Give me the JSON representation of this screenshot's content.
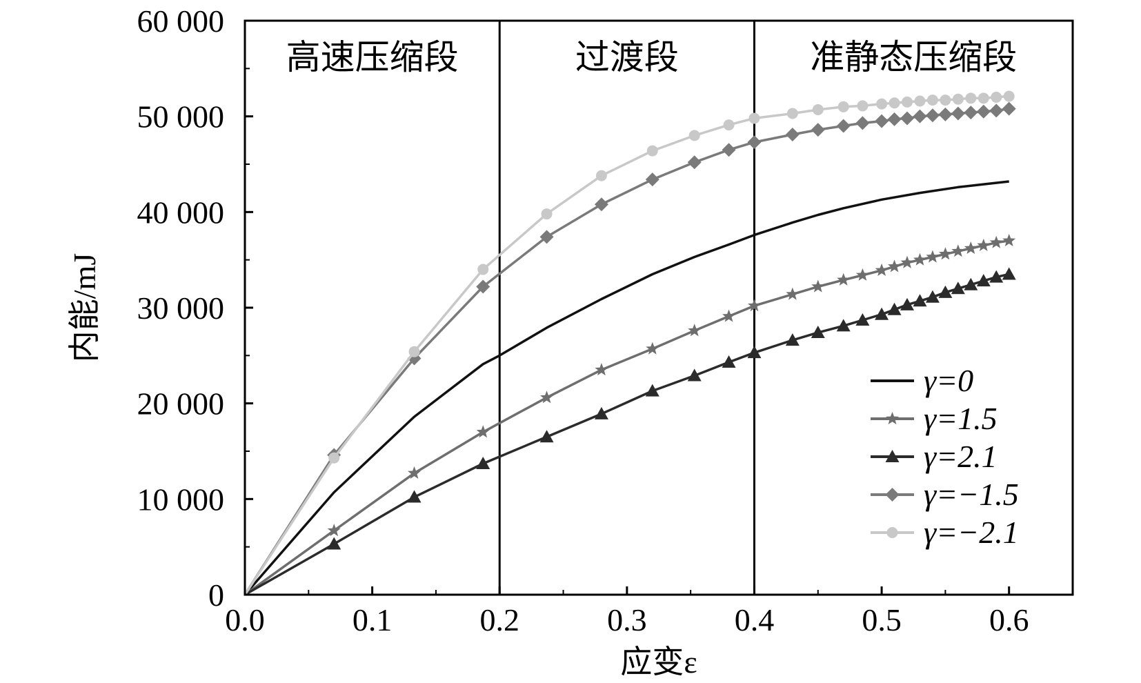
{
  "chart_data": {
    "type": "line",
    "title": "",
    "xlabel": "应变ε",
    "ylabel": "内能/mJ",
    "xlim": [
      0.0,
      0.65
    ],
    "ylim": [
      0,
      60000
    ],
    "x_ticks": [
      0.0,
      0.1,
      0.2,
      0.3,
      0.4,
      0.5,
      0.6
    ],
    "x_tick_labels": [
      "0.0",
      "0.1",
      "0.2",
      "0.3",
      "0.4",
      "0.5",
      "0.6"
    ],
    "y_ticks": [
      0,
      10000,
      20000,
      30000,
      40000,
      50000,
      60000
    ],
    "y_tick_labels": [
      "0",
      "10 000",
      "20 000",
      "30 000",
      "40 000",
      "50 000",
      "60 000"
    ],
    "grid": false,
    "legend_position": "bottom-right",
    "regions": [
      {
        "label": "高速压缩段",
        "x_start": 0.0,
        "x_end": 0.2
      },
      {
        "label": "过渡段",
        "x_start": 0.2,
        "x_end": 0.4
      },
      {
        "label": "准静态压缩段",
        "x_start": 0.4,
        "x_end": 0.65
      }
    ],
    "boundaries": [
      0.2,
      0.4
    ],
    "series": [
      {
        "name": "γ=0",
        "color": "#111111",
        "marker": "none",
        "x": [
          0.0,
          0.07,
          0.133,
          0.187,
          0.2,
          0.237,
          0.28,
          0.32,
          0.353,
          0.38,
          0.4,
          0.43,
          0.45,
          0.47,
          0.5,
          0.53,
          0.56,
          0.58,
          0.6
        ],
        "y": [
          0,
          10700,
          18600,
          24100,
          25000,
          27900,
          30900,
          33500,
          35300,
          36600,
          37600,
          38900,
          39700,
          40400,
          41300,
          42000,
          42600,
          42900,
          43200
        ]
      },
      {
        "name": "γ=1.5",
        "color": "#6e6e6e",
        "marker": "star",
        "x": [
          0.0,
          0.07,
          0.133,
          0.187,
          0.237,
          0.28,
          0.32,
          0.353,
          0.38,
          0.4,
          0.43,
          0.45,
          0.47,
          0.485,
          0.5,
          0.51,
          0.52,
          0.53,
          0.54,
          0.55,
          0.56,
          0.57,
          0.58,
          0.59,
          0.6
        ],
        "y": [
          0,
          6700,
          12700,
          17000,
          20600,
          23500,
          25700,
          27600,
          29100,
          30200,
          31400,
          32200,
          32900,
          33400,
          33900,
          34300,
          34700,
          35000,
          35300,
          35600,
          35900,
          36200,
          36500,
          36800,
          37000
        ]
      },
      {
        "name": "γ=2.1",
        "color": "#2b2b2b",
        "marker": "triangle",
        "x": [
          0.0,
          0.07,
          0.133,
          0.187,
          0.237,
          0.28,
          0.32,
          0.353,
          0.38,
          0.4,
          0.43,
          0.45,
          0.47,
          0.485,
          0.5,
          0.51,
          0.52,
          0.53,
          0.54,
          0.55,
          0.56,
          0.57,
          0.58,
          0.59,
          0.6
        ],
        "y": [
          0,
          5300,
          10200,
          13700,
          16500,
          18900,
          21300,
          22900,
          24300,
          25300,
          26600,
          27400,
          28100,
          28700,
          29300,
          29800,
          30300,
          30700,
          31100,
          31600,
          32000,
          32400,
          32800,
          33200,
          33500
        ]
      },
      {
        "name": "γ=−1.5",
        "color": "#7a7a7a",
        "marker": "diamond",
        "x": [
          0.0,
          0.07,
          0.133,
          0.187,
          0.237,
          0.28,
          0.32,
          0.353,
          0.38,
          0.4,
          0.43,
          0.45,
          0.47,
          0.485,
          0.5,
          0.51,
          0.52,
          0.53,
          0.54,
          0.55,
          0.56,
          0.57,
          0.58,
          0.59,
          0.6
        ],
        "y": [
          0,
          14600,
          24700,
          32200,
          37400,
          40800,
          43400,
          45200,
          46500,
          47300,
          48100,
          48600,
          49000,
          49300,
          49500,
          49700,
          49800,
          50000,
          50100,
          50200,
          50300,
          50400,
          50500,
          50600,
          50800
        ]
      },
      {
        "name": "γ=−2.1",
        "color": "#c8c8c8",
        "marker": "circle",
        "x": [
          0.0,
          0.07,
          0.133,
          0.187,
          0.237,
          0.28,
          0.32,
          0.353,
          0.38,
          0.4,
          0.43,
          0.45,
          0.47,
          0.485,
          0.5,
          0.51,
          0.52,
          0.53,
          0.54,
          0.55,
          0.56,
          0.57,
          0.58,
          0.59,
          0.6
        ],
        "y": [
          0,
          14300,
          25400,
          34000,
          39800,
          43800,
          46400,
          48000,
          49100,
          49800,
          50300,
          50700,
          51000,
          51100,
          51300,
          51400,
          51500,
          51600,
          51700,
          51700,
          51800,
          51900,
          51900,
          52000,
          52100
        ]
      }
    ]
  }
}
